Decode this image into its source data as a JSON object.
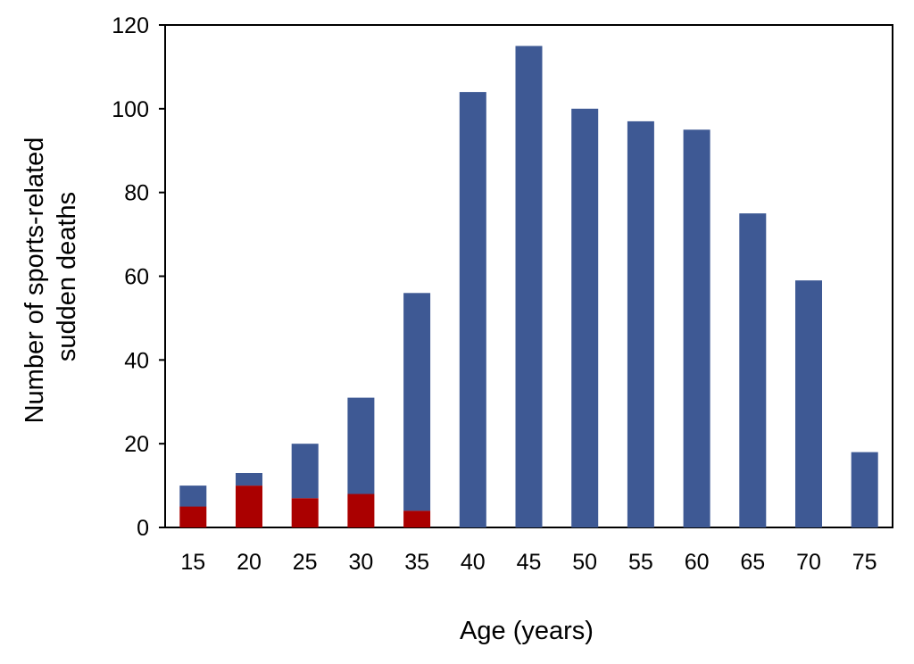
{
  "chart_data": {
    "type": "bar",
    "stacked": true,
    "categories": [
      "15",
      "20",
      "25",
      "30",
      "35",
      "40",
      "45",
      "50",
      "55",
      "60",
      "65",
      "70",
      "75"
    ],
    "series": [
      {
        "color": "#aa0000",
        "values": [
          5,
          10,
          7,
          8,
          4,
          0,
          0,
          0,
          0,
          0,
          0,
          0,
          0
        ]
      },
      {
        "color": "#3e5994",
        "values": [
          5,
          3,
          13,
          23,
          52,
          104,
          115,
          100,
          97,
          95,
          75,
          59,
          18
        ]
      }
    ],
    "totals": [
      10,
      13,
      20,
      31,
      56,
      104,
      115,
      100,
      97,
      95,
      75,
      59,
      18
    ],
    "xlabel": "Age (years)",
    "ylabel_lines": [
      "Number of sports-related",
      "sudden deaths"
    ],
    "ylim": [
      0,
      120
    ],
    "yticks": [
      "0",
      "20",
      "40",
      "60",
      "80",
      "100",
      "120"
    ],
    "grid": false,
    "legend": "none"
  }
}
